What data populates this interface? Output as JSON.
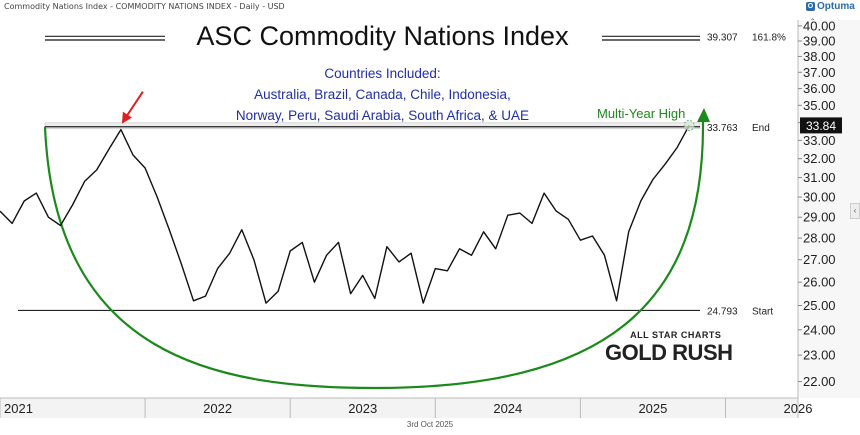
{
  "header": {
    "source_label": "Commodity Nations Index - COMMODITY NATIONS INDEX - Daily - USD",
    "logo_text": "Optuma",
    "date_stamp": "3rd Oct 2025"
  },
  "annotations": {
    "title": "ASC Commodity Nations Index",
    "subtitle_1": "Countries Included:",
    "subtitle_2": "Australia, Brazil, Canada, Chile, Indonesia,",
    "subtitle_3": "Norway, Peru, Saudi Arabia, South Africa, & UAE",
    "multi_year_high": "Multi-Year High",
    "brand_line1": "ALL STAR CHARTS",
    "brand_line2": "GOLD RUSH"
  },
  "colors": {
    "price_line": "#111111",
    "arc": "#1b8a1b",
    "arrow": "#e02020",
    "text_blue": "#1f2fa8",
    "level_line": "#222222",
    "axis_bg": "#f3f3f3"
  },
  "chart_data": {
    "type": "line",
    "x_axis": {
      "tick_labels": [
        "2021",
        "2022",
        "2023",
        "2024",
        "2025",
        "2026"
      ],
      "range": [
        "2021-01",
        "2026-07"
      ]
    },
    "y_axis": {
      "range": [
        21.4,
        40.4
      ],
      "tick_labels": [
        "22.00",
        "23.00",
        "24.00",
        "25.00",
        "26.00",
        "27.00",
        "28.00",
        "29.00",
        "30.00",
        "31.00",
        "32.00",
        "33.00",
        "34.00",
        "35.00",
        "36.00",
        "37.00",
        "38.00",
        "39.00",
        "40.00"
      ],
      "scale": "log"
    },
    "series": [
      {
        "x": [
          "2021-01",
          "2021-02",
          "2021-03",
          "2021-04",
          "2021-05",
          "2021-06",
          "2021-07",
          "2021-08",
          "2021-09",
          "2021-10",
          "2021-11",
          "2021-12",
          "2022-01",
          "2022-02",
          "2022-03",
          "2022-04",
          "2022-05",
          "2022-06",
          "2022-07",
          "2022-08",
          "2022-09",
          "2022-10",
          "2022-11",
          "2022-12",
          "2023-01",
          "2023-02",
          "2023-03",
          "2023-04",
          "2023-05",
          "2023-06",
          "2023-07",
          "2023-08",
          "2023-09",
          "2023-10",
          "2023-11",
          "2023-12",
          "2024-01",
          "2024-02",
          "2024-03",
          "2024-04",
          "2024-05",
          "2024-06",
          "2024-07",
          "2024-08",
          "2024-09",
          "2024-10",
          "2024-11",
          "2024-12",
          "2025-01",
          "2025-02",
          "2025-03",
          "2025-04",
          "2025-05",
          "2025-06",
          "2025-07",
          "2025-08",
          "2025-09",
          "2025-10"
        ],
        "values": [
          29.3,
          28.7,
          29.8,
          30.2,
          29.0,
          28.6,
          29.6,
          30.8,
          31.4,
          32.5,
          33.6,
          32.2,
          31.5,
          30.0,
          28.4,
          26.8,
          25.2,
          25.4,
          26.6,
          27.3,
          28.4,
          27.0,
          25.1,
          25.6,
          27.4,
          27.8,
          26.0,
          27.2,
          27.8,
          25.5,
          26.3,
          25.3,
          27.6,
          26.9,
          27.3,
          25.1,
          26.6,
          26.5,
          27.5,
          27.2,
          28.3,
          27.5,
          29.1,
          29.2,
          28.7,
          30.2,
          29.3,
          28.9,
          27.9,
          28.1,
          27.2,
          25.2,
          28.3,
          29.8,
          30.9,
          31.7,
          32.6,
          33.84
        ]
      }
    ],
    "levels": [
      {
        "value": 39.307,
        "label": "39.307",
        "tag": "161.8%"
      },
      {
        "value": 33.763,
        "label": "33.763",
        "tag": "End"
      },
      {
        "value": 24.793,
        "label": "24.793",
        "tag": "Start"
      }
    ],
    "last_value": {
      "value": 33.84,
      "label": "33.84"
    },
    "grid": false
  }
}
